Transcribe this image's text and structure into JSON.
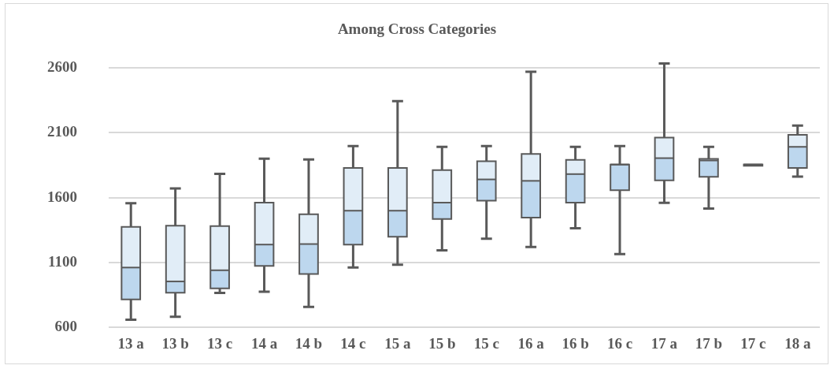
{
  "chart_data": {
    "type": "box",
    "title": "Among Cross Categories",
    "categories": [
      "13 a",
      "13 b",
      "13 c",
      "14 a",
      "14 b",
      "14 c",
      "15 a",
      "15 b",
      "15 c",
      "16 a",
      "16 b",
      "16 c",
      "17 a",
      "17 b",
      "17 c",
      "18 a"
    ],
    "ylim": [
      600,
      2600
    ],
    "yticks": [
      600,
      1100,
      1600,
      2100,
      2600
    ],
    "grid": "y",
    "legend": false,
    "series": [
      {
        "color": "#bdd7ee",
        "boxes": [
          {
            "low": 659,
            "q1": 816,
            "median": 1061,
            "q3": 1375,
            "high": 1557
          },
          {
            "low": 682,
            "q1": 867,
            "median": 954,
            "q3": 1384,
            "high": 1670
          },
          {
            "low": 865,
            "q1": 900,
            "median": 1040,
            "q3": 1380,
            "high": 1783
          },
          {
            "low": 875,
            "q1": 1073,
            "median": 1238,
            "q3": 1561,
            "high": 1900
          },
          {
            "low": 758,
            "q1": 1011,
            "median": 1242,
            "q3": 1472,
            "high": 1894
          },
          {
            "low": 1061,
            "q1": 1238,
            "median": 1499,
            "q3": 1828,
            "high": 1997
          },
          {
            "low": 1083,
            "q1": 1299,
            "median": 1499,
            "q3": 1828,
            "high": 2343
          },
          {
            "low": 1194,
            "q1": 1435,
            "median": 1561,
            "q3": 1812,
            "high": 1991
          },
          {
            "low": 1283,
            "q1": 1577,
            "median": 1740,
            "q3": 1880,
            "high": 1997
          },
          {
            "low": 1219,
            "q1": 1445,
            "median": 1729,
            "q3": 1937,
            "high": 2569
          },
          {
            "low": 1363,
            "q1": 1561,
            "median": 1781,
            "q3": 1890,
            "high": 1991
          },
          {
            "low": 1164,
            "q1": 1657,
            "median": 1855,
            "q3": 1855,
            "high": 1997
          },
          {
            "low": 1559,
            "q1": 1732,
            "median": 1904,
            "q3": 2063,
            "high": 2633
          },
          {
            "low": 1515,
            "q1": 1760,
            "median": 1886,
            "q3": 1898,
            "high": 1991
          },
          {
            "low": 1845,
            "q1": 1845,
            "median": 1855,
            "q3": 1855,
            "high": 1855
          },
          {
            "low": 1762,
            "q1": 1828,
            "median": 1991,
            "q3": 2083,
            "high": 2155
          }
        ]
      }
    ]
  }
}
